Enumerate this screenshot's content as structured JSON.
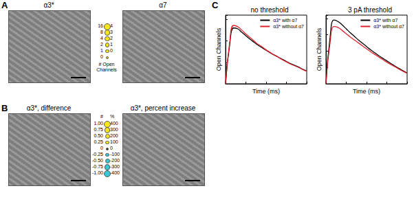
{
  "images": {
    "A": {
      "label": "A",
      "titles": [
        "α3*",
        "α7"
      ],
      "scale": {
        "title": "# Open Channels",
        "left_labels": [
          16,
          8,
          4,
          2,
          1,
          0
        ],
        "right_labels": [
          4,
          3,
          2,
          1,
          0
        ]
      }
    },
    "B": {
      "label": "B",
      "titles": [
        "α3*, difference",
        "α3*, percent increase"
      ],
      "scale": {
        "left_title": "#",
        "right_title": "%",
        "left_labels": [
          "1.00",
          "0.75",
          "0.50",
          "0.25",
          "0",
          "-0.25",
          "-0.50",
          "-0.75",
          "-1.00"
        ],
        "right_labels": [
          400,
          300,
          200,
          100,
          0,
          -100,
          -200,
          -300,
          -400
        ]
      }
    }
  },
  "panel_label": "C",
  "chart_data": [
    {
      "type": "line",
      "title": "no threshold",
      "xlabel": "Time (ms)",
      "ylabel": "Open Channels",
      "x": [
        0,
        1,
        2,
        3,
        4,
        5,
        6,
        7,
        8,
        9,
        10,
        11,
        12,
        13,
        14,
        15,
        16,
        17,
        18,
        19,
        20
      ],
      "series": [
        {
          "name": "α3* with α7",
          "color": "#000000",
          "values": [
            0,
            0.9,
            1.3,
            1.28,
            1.2,
            1.12,
            1.04,
            0.97,
            0.9,
            0.84,
            0.78,
            0.72,
            0.67,
            0.62,
            0.57,
            0.52,
            0.47,
            0.43,
            0.39,
            0.34,
            0.3
          ]
        },
        {
          "name": "α3* without α7",
          "color": "#e0202a",
          "values": [
            0,
            0.95,
            1.36,
            1.33,
            1.25,
            1.16,
            1.08,
            1.0,
            0.92,
            0.86,
            0.79,
            0.73,
            0.67,
            0.62,
            0.56,
            0.51,
            0.46,
            0.42,
            0.38,
            0.33,
            0.29
          ]
        }
      ],
      "xlim": [
        0,
        20
      ],
      "xticks": [
        0,
        5,
        10,
        15,
        20
      ],
      "ylim": [
        0,
        1.6
      ],
      "yticks": [
        0,
        0.5,
        1,
        1.5
      ],
      "tick_labels": false,
      "legend": "upper right"
    },
    {
      "type": "line",
      "title": "3 pA threshold",
      "xlabel": "Time (ms)",
      "ylabel": "Open Channels",
      "x": [
        0,
        1,
        2,
        3,
        4,
        5,
        6,
        7,
        8,
        9,
        10,
        11,
        12,
        13,
        14,
        15,
        16,
        17,
        18,
        19,
        20
      ],
      "series": [
        {
          "name": "α3* with α7",
          "color": "#000000",
          "values": [
            0,
            1.4,
            1.95,
            1.9,
            1.8,
            1.68,
            1.56,
            1.45,
            1.34,
            1.24,
            1.14,
            1.04,
            0.95,
            0.86,
            0.78,
            0.7,
            0.62,
            0.54,
            0.47,
            0.4,
            0.33
          ]
        },
        {
          "name": "α3* without α7",
          "color": "#e0202a",
          "values": [
            0,
            1.25,
            1.75,
            1.72,
            1.63,
            1.53,
            1.43,
            1.34,
            1.25,
            1.16,
            1.07,
            0.98,
            0.9,
            0.82,
            0.74,
            0.66,
            0.59,
            0.52,
            0.45,
            0.38,
            0.32
          ]
        }
      ],
      "xlim": [
        0,
        20
      ],
      "xticks": [
        0,
        5,
        10,
        15,
        20
      ],
      "ylim": [
        0,
        2.1
      ],
      "yticks": [
        0,
        0.5,
        1,
        1.5,
        2
      ],
      "tick_labels": false,
      "legend": "upper right"
    }
  ]
}
